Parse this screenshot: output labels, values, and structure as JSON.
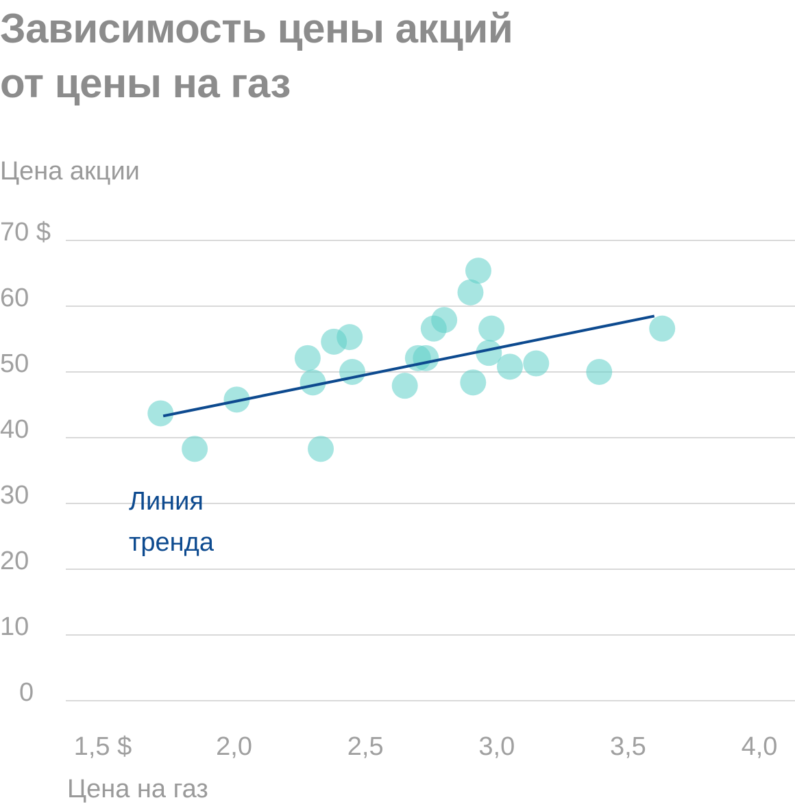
{
  "title_lines": [
    "Зависимость цены акций",
    "от цены на газ"
  ],
  "chart_data": {
    "type": "scatter",
    "title": "Зависимость цены акций от цены на газ",
    "ylabel": "Цена акции",
    "xlabel": "Цена на газ",
    "xlim": [
      1.5,
      4.0
    ],
    "ylim": [
      0,
      70
    ],
    "x_ticks": [
      1.5,
      2.0,
      2.5,
      3.0,
      3.5,
      4.0
    ],
    "x_tick_labels": [
      "1,5 $",
      "2,0",
      "2,5",
      "3,0",
      "3,5",
      "4,0"
    ],
    "y_ticks": [
      0,
      10,
      20,
      30,
      40,
      50,
      60,
      70
    ],
    "y_tick_labels": [
      "0",
      "10",
      "20",
      "30",
      "40",
      "50",
      "60",
      "70 $"
    ],
    "grid": "horizontal",
    "points": [
      {
        "x": 1.72,
        "y": 43.7
      },
      {
        "x": 1.85,
        "y": 38.3
      },
      {
        "x": 2.01,
        "y": 45.8
      },
      {
        "x": 2.28,
        "y": 52.1
      },
      {
        "x": 2.3,
        "y": 48.4
      },
      {
        "x": 2.33,
        "y": 38.3
      },
      {
        "x": 2.38,
        "y": 54.6
      },
      {
        "x": 2.44,
        "y": 55.3
      },
      {
        "x": 2.45,
        "y": 50.0
      },
      {
        "x": 2.65,
        "y": 47.9
      },
      {
        "x": 2.7,
        "y": 52.1
      },
      {
        "x": 2.73,
        "y": 52.1
      },
      {
        "x": 2.76,
        "y": 56.6
      },
      {
        "x": 2.8,
        "y": 57.9
      },
      {
        "x": 2.9,
        "y": 62.1
      },
      {
        "x": 2.91,
        "y": 48.4
      },
      {
        "x": 2.93,
        "y": 65.4
      },
      {
        "x": 2.97,
        "y": 52.9
      },
      {
        "x": 2.98,
        "y": 56.6
      },
      {
        "x": 3.05,
        "y": 50.8
      },
      {
        "x": 3.15,
        "y": 51.3
      },
      {
        "x": 3.39,
        "y": 50.0
      },
      {
        "x": 3.63,
        "y": 56.6
      }
    ],
    "trend_line": {
      "x1": 1.73,
      "y1": 43.3,
      "x2": 3.6,
      "y2": 58.5
    },
    "annotation_lines": [
      "Линия",
      "тренда"
    ],
    "colors": {
      "points": "#5fd0c8",
      "trend": "#0d4a8f",
      "grid": "#d9d9d9",
      "title": "#8c8c8c",
      "ticks": "#a0a0a0"
    }
  }
}
